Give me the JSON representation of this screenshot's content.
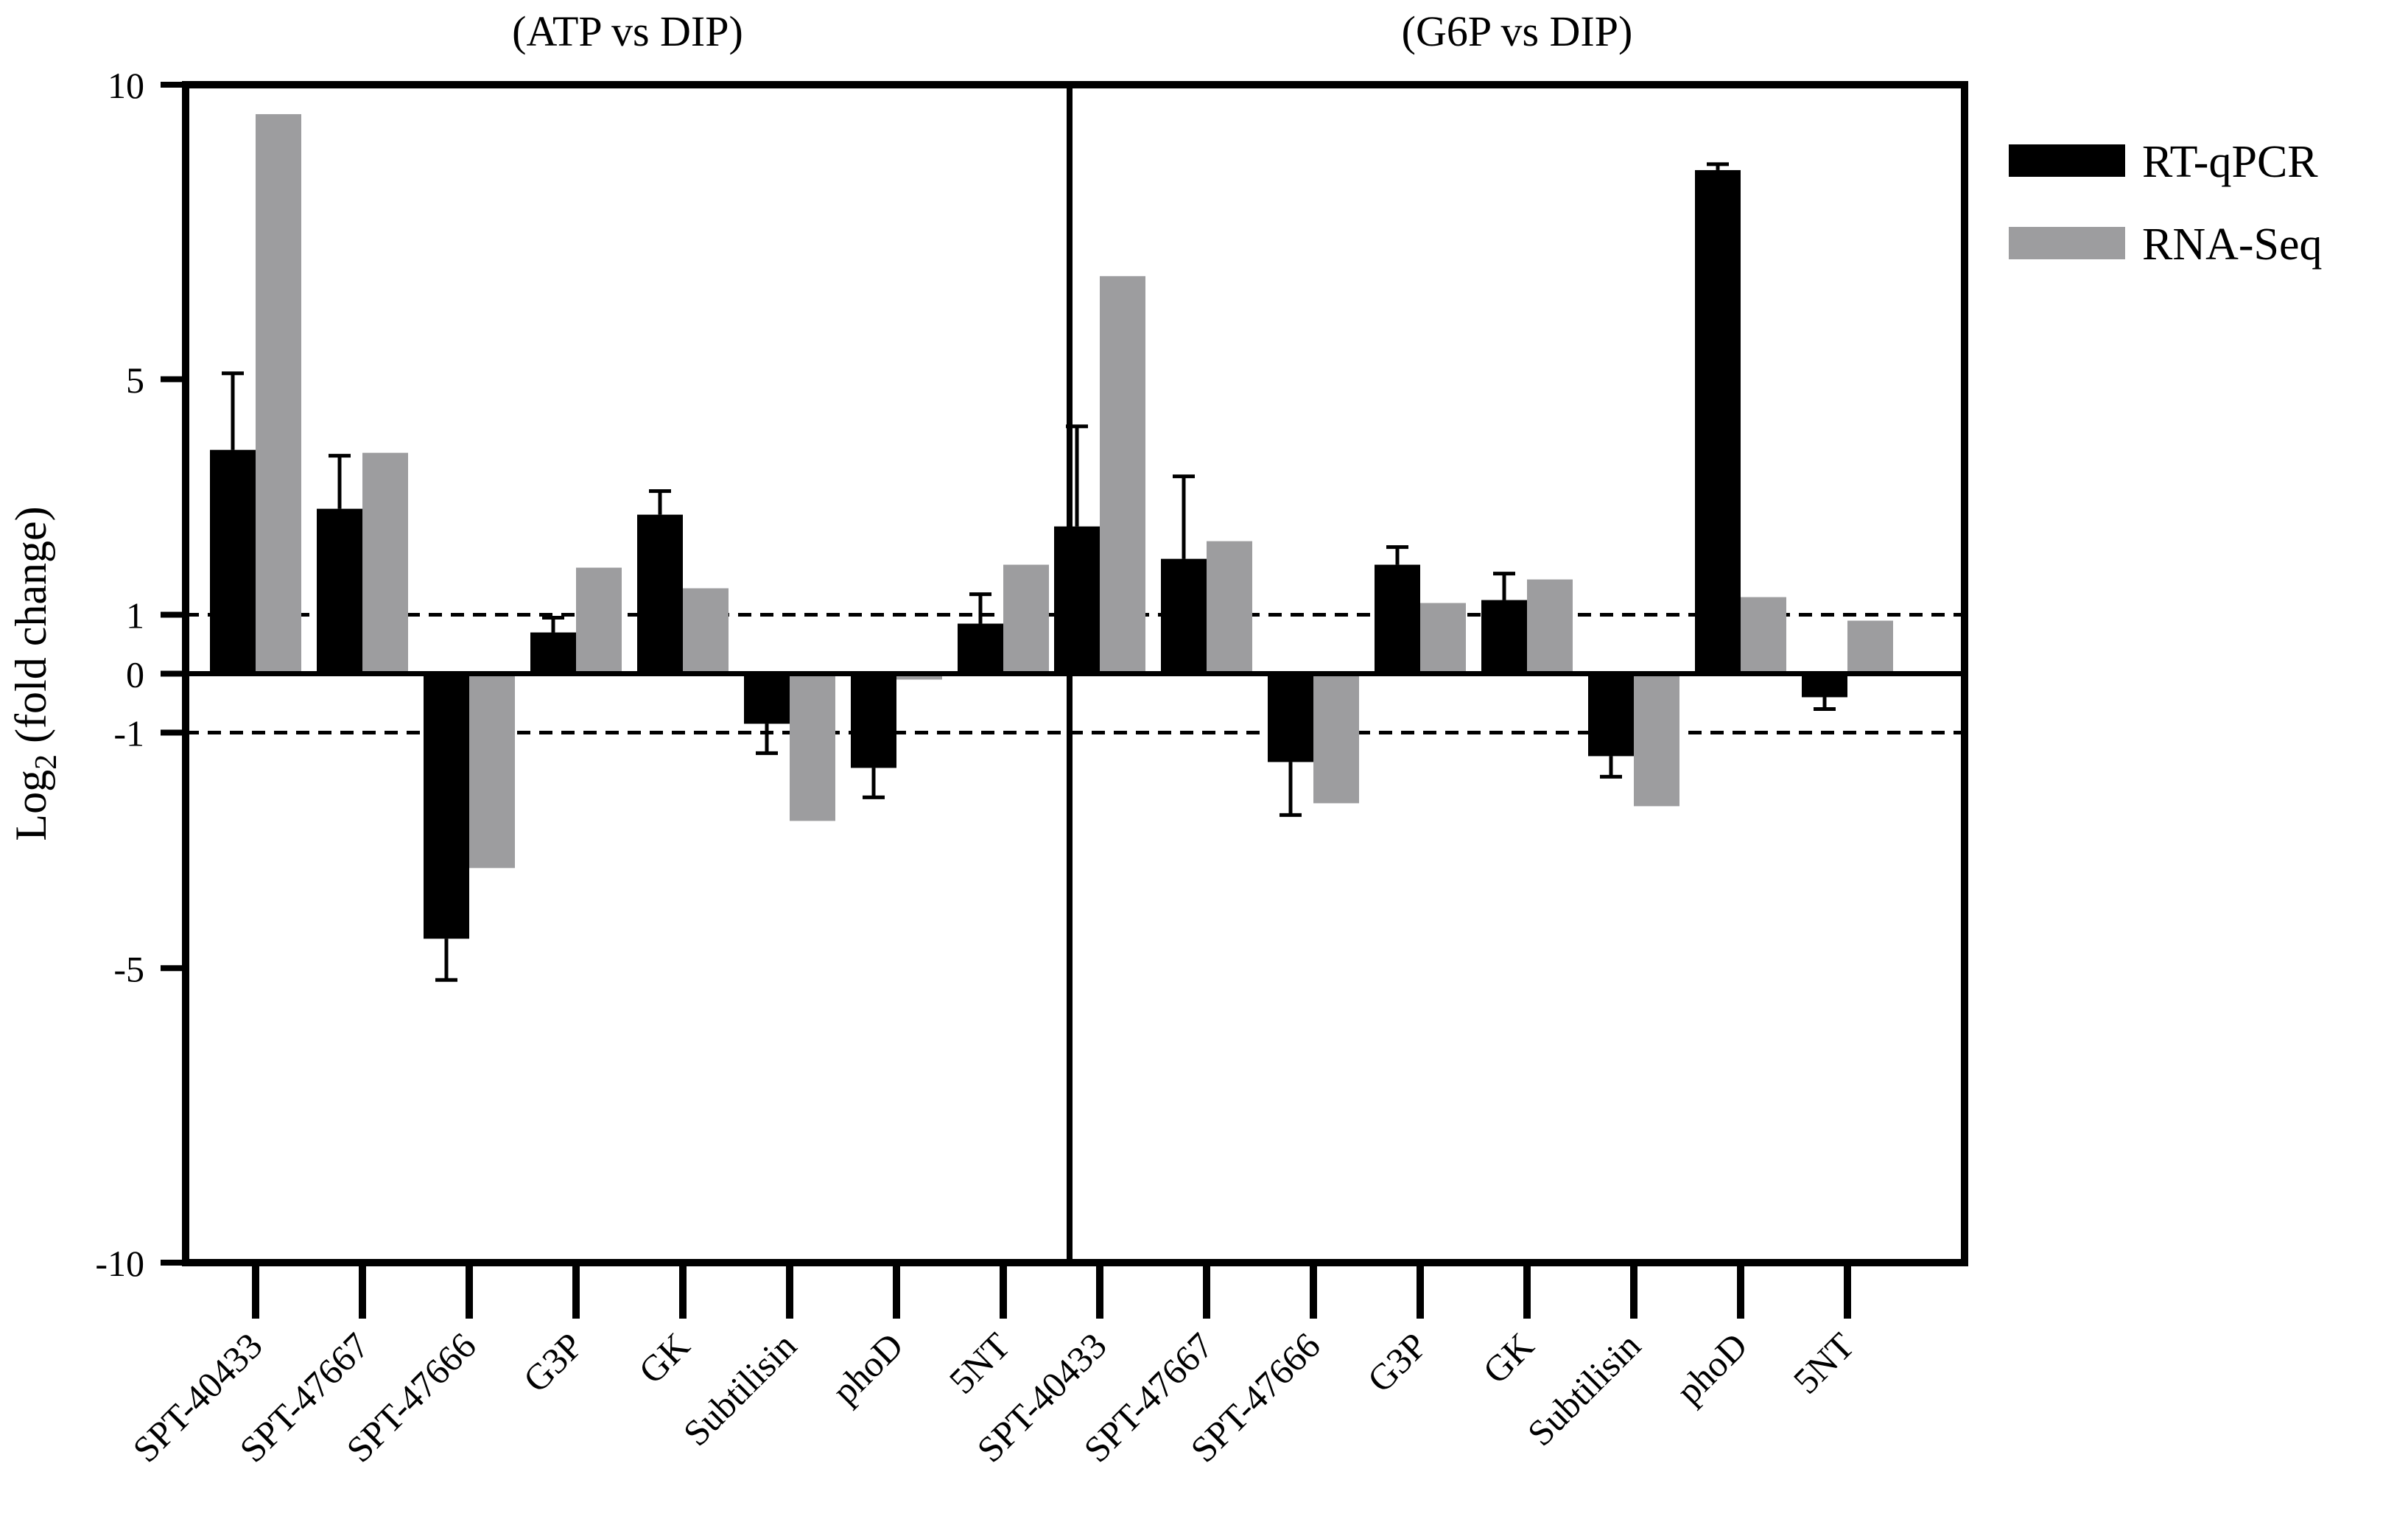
{
  "chart_data": {
    "type": "bar",
    "ylabel": {
      "prefix": "Log",
      "subscript": "2",
      "suffix": " (fold change)"
    },
    "ylim": [
      -10,
      10
    ],
    "yticks": [
      {
        "value": 10,
        "label": "10"
      },
      {
        "value": 5,
        "label": "5"
      },
      {
        "value": 1,
        "label": "1"
      },
      {
        "value": 0,
        "label": "0"
      },
      {
        "value": -1,
        "label": "-1"
      },
      {
        "value": -5,
        "label": "-5"
      },
      {
        "value": -10,
        "label": "-10"
      }
    ],
    "threshold_lines": [
      1,
      -1
    ],
    "categories": [
      "SPT-40433",
      "SPT-47667",
      "SPT-47666",
      "G3P",
      "GK",
      "Subtilisin",
      "phoD",
      "5NT"
    ],
    "legend": [
      {
        "name": "RT-qPCR",
        "color": "#000000"
      },
      {
        "name": "RNA-Seq",
        "color": "#9d9d9f"
      }
    ],
    "panels": [
      {
        "title": "(ATP vs DIP)",
        "series": [
          {
            "name": "RT-qPCR",
            "values": [
              3.8,
              2.8,
              -4.5,
              0.7,
              2.7,
              -0.85,
              -1.6,
              0.85
            ],
            "errors": [
              1.3,
              0.9,
              0.7,
              0.25,
              0.4,
              0.5,
              0.5,
              0.5
            ]
          },
          {
            "name": "RNA-Seq",
            "values": [
              9.5,
              3.75,
              -3.3,
              1.8,
              1.45,
              -2.5,
              -0.1,
              1.85
            ]
          }
        ]
      },
      {
        "title": "(G6P vs DIP)",
        "series": [
          {
            "name": "RT-qPCR",
            "values": [
              2.5,
              1.95,
              -1.5,
              1.85,
              1.25,
              -1.4,
              8.55,
              -0.4
            ],
            "errors": [
              1.7,
              1.4,
              0.9,
              0.3,
              0.45,
              0.35,
              0.1,
              0.2
            ]
          },
          {
            "name": "RNA-Seq",
            "values": [
              6.75,
              2.25,
              -2.2,
              1.2,
              1.6,
              -2.25,
              1.3,
              0.9
            ]
          }
        ]
      }
    ]
  }
}
